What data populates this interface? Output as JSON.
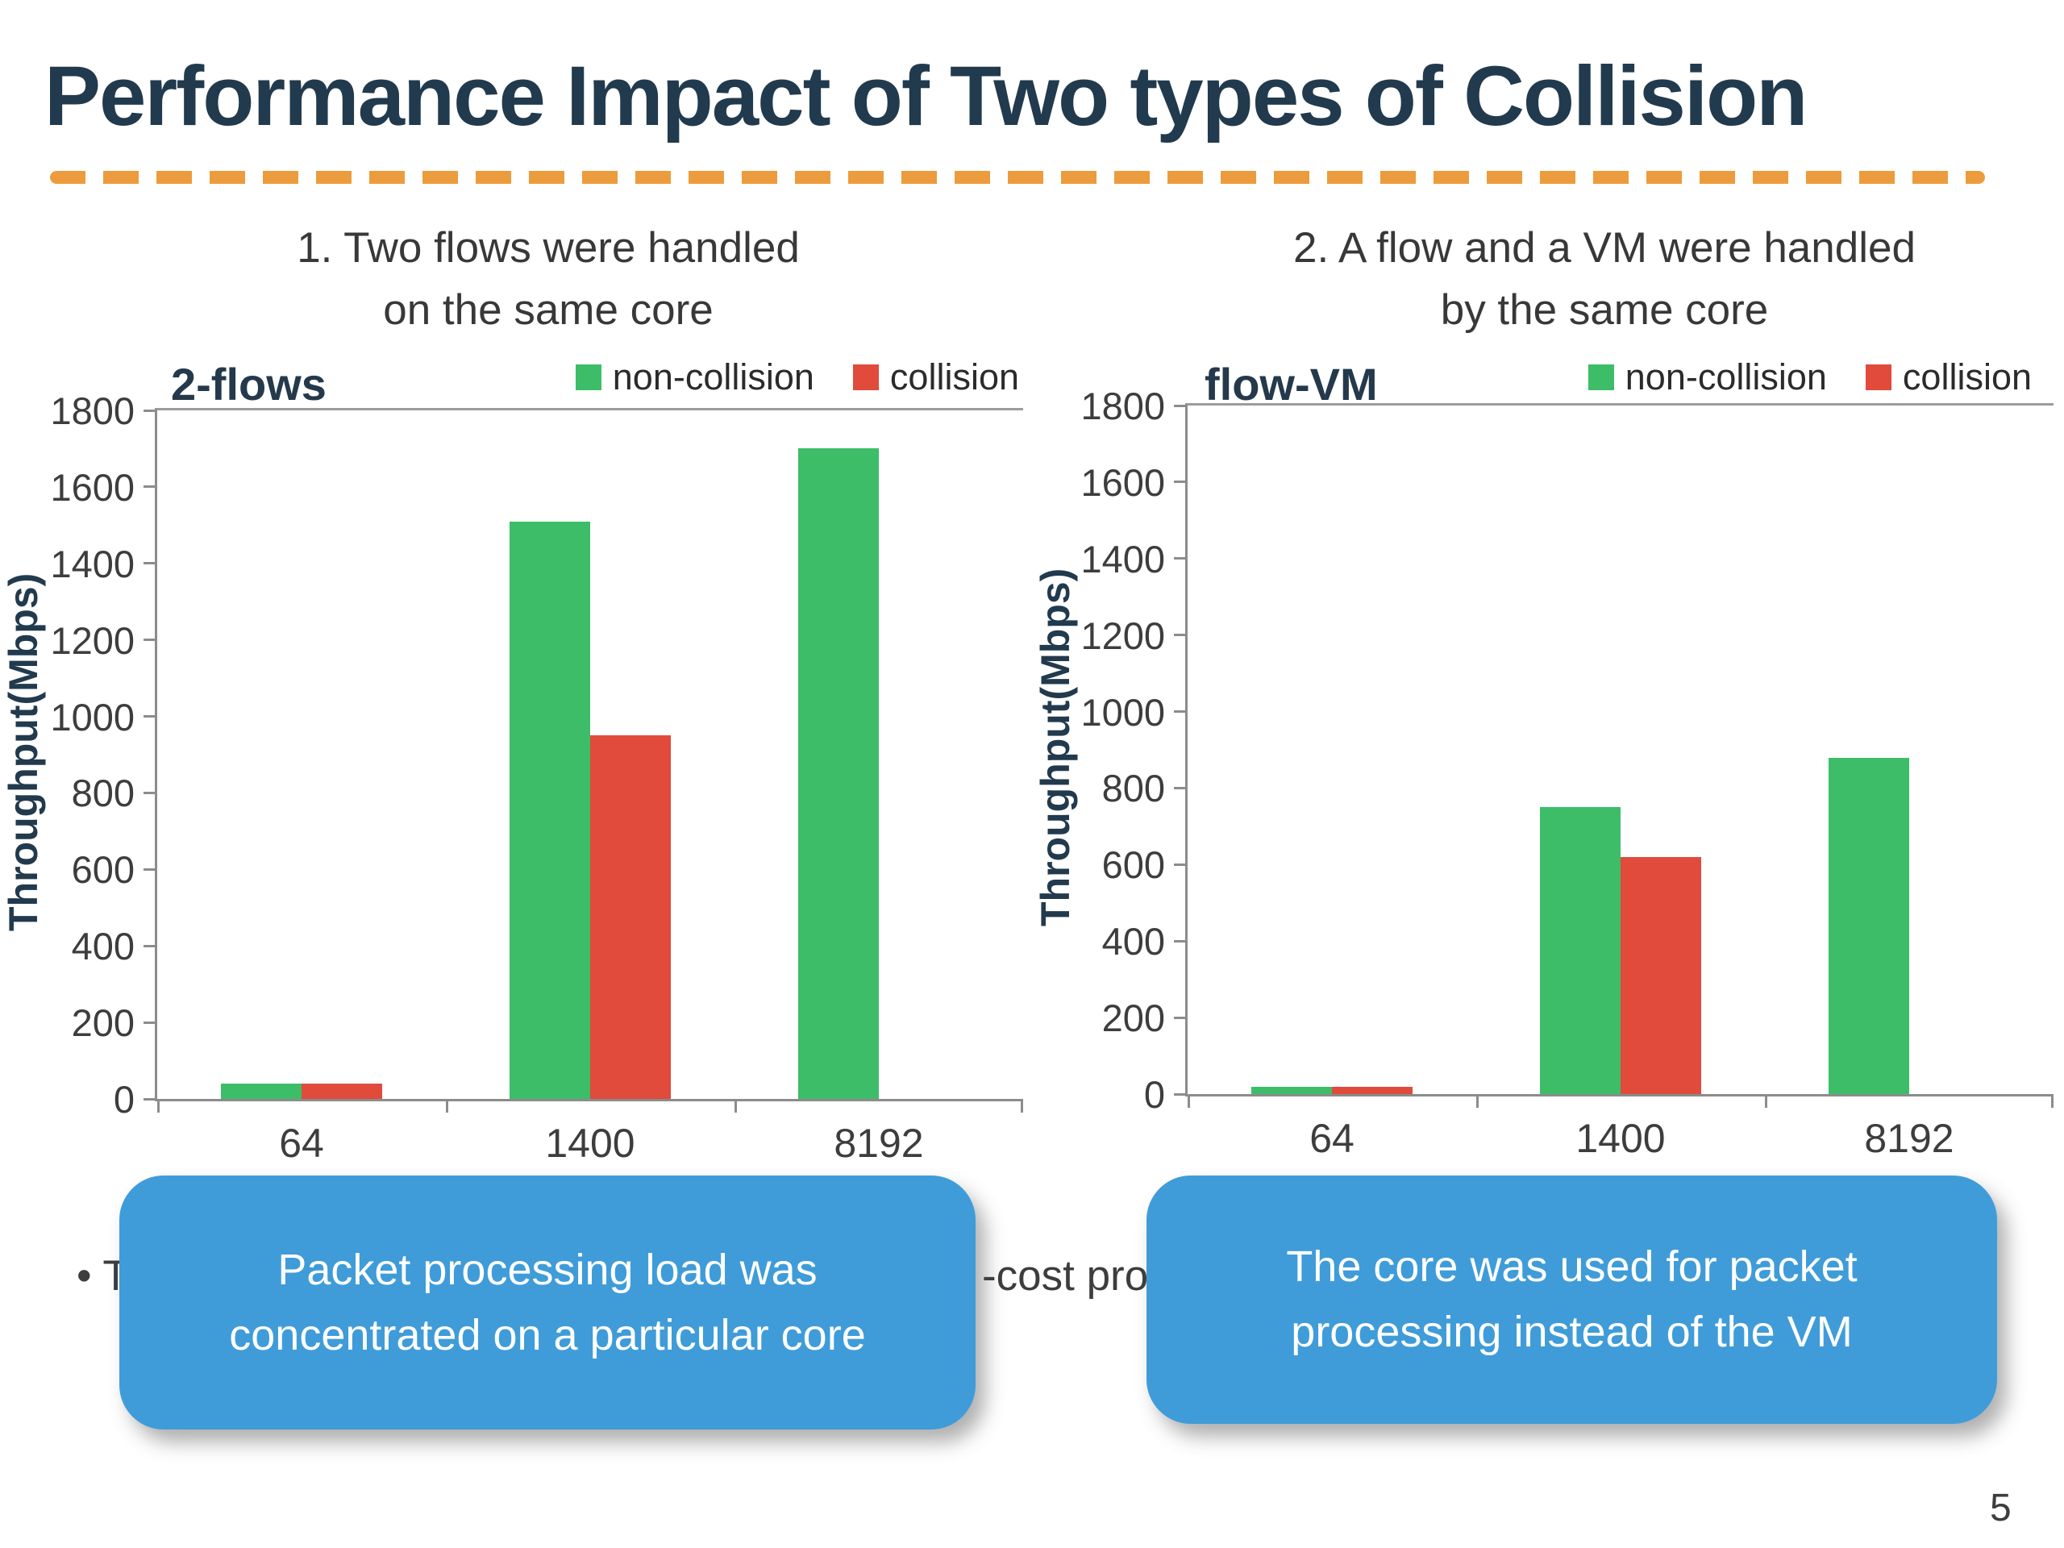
{
  "slide": {
    "title": "Performance Impact of Two types of Collision",
    "page_number": "5",
    "accent_color": "#EC9C3C",
    "title_color": "#223A4D"
  },
  "headers": {
    "left": [
      "1. Two flows were handled",
      "on the same core"
    ],
    "right": [
      "2. A flow and a VM were handled",
      "by the same core"
    ]
  },
  "bullet": {
    "visible_left": "• T",
    "visible_right": "-cost pro"
  },
  "callouts": {
    "left": [
      "Packet processing load was",
      "concentrated on a particular core"
    ],
    "right": [
      "The core was used for packet",
      "processing instead of the VM"
    ]
  },
  "chart_data": [
    {
      "type": "bar",
      "title": "2-flows",
      "categories": [
        "64",
        "1400",
        "8192"
      ],
      "series": [
        {
          "name": "non-collision",
          "color": "#3DBD68",
          "values": [
            40,
            1510,
            1700
          ]
        },
        {
          "name": "collision",
          "color": "#E04B3C",
          "values": [
            40,
            950,
            0
          ]
        }
      ],
      "xlabel": "",
      "ylabel": "Throughput(Mbps)",
      "ylim": [
        0,
        1800
      ],
      "ytick_step": 200,
      "legend_position": "top-right",
      "grid": false
    },
    {
      "type": "bar",
      "title": "flow-VM",
      "categories": [
        "64",
        "1400",
        "8192"
      ],
      "series": [
        {
          "name": "non-collision",
          "color": "#3DBD68",
          "values": [
            20,
            750,
            880
          ]
        },
        {
          "name": "collision",
          "color": "#E04B3C",
          "values": [
            20,
            620,
            0
          ]
        }
      ],
      "xlabel": "",
      "ylabel": "Throughput(Mbps)",
      "ylim": [
        0,
        1800
      ],
      "ytick_step": 200,
      "legend_position": "top-right",
      "grid": false
    }
  ]
}
